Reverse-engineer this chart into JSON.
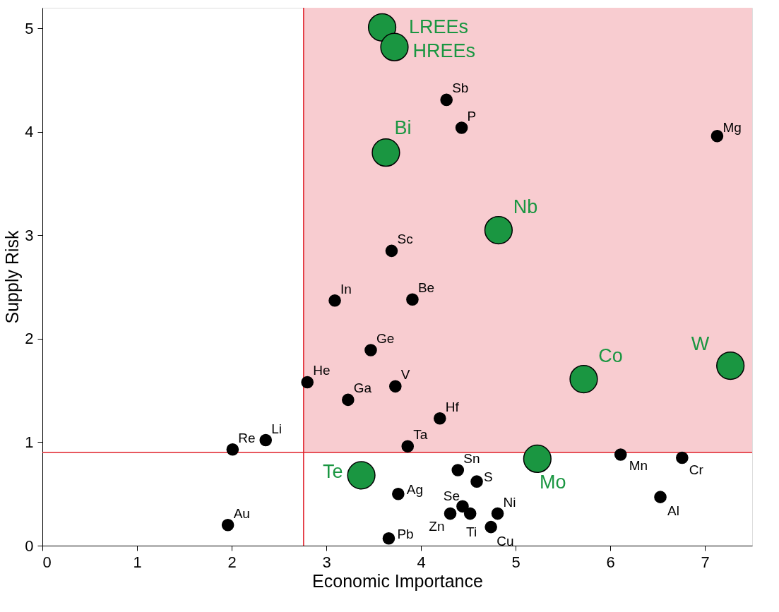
{
  "chart_data": {
    "type": "scatter",
    "xlabel": "Economic Importance",
    "ylabel": "Supply Risk",
    "xlim": [
      0,
      7.5
    ],
    "ylim": [
      0,
      5.2
    ],
    "xticks": [
      0,
      1,
      2,
      3,
      4,
      5,
      6,
      7
    ],
    "yticks": [
      0,
      1,
      2,
      3,
      4,
      5
    ],
    "grid": false,
    "marker": "circle",
    "series": [
      {
        "color": "#000000",
        "x": [
          4.27,
          4.43,
          7.13,
          3.69,
          3.09,
          3.91,
          3.47,
          2.8,
          3.73,
          3.23,
          4.2,
          3.86,
          2.01,
          2.36,
          6.11,
          6.76,
          4.39,
          4.59,
          3.76,
          6.53,
          4.44,
          4.31,
          4.52,
          4.81,
          1.96,
          4.74,
          3.66
        ],
        "values": [
          4.31,
          4.04,
          3.96,
          2.85,
          2.37,
          2.38,
          1.89,
          1.58,
          1.54,
          1.41,
          1.23,
          0.96,
          0.93,
          1.02,
          0.88,
          0.85,
          0.73,
          0.62,
          0.5,
          0.47,
          0.38,
          0.31,
          0.31,
          0.31,
          0.2,
          0.18,
          0.07
        ]
      },
      {
        "color": "#1a9641",
        "x": [
          3.59,
          3.72,
          3.63,
          4.82,
          5.72,
          7.27,
          5.23,
          3.37
        ],
        "values": [
          5.01,
          4.82,
          3.8,
          3.05,
          1.61,
          1.74,
          0.84,
          0.68
        ]
      }
    ],
    "ref_lines": [
      {
        "axis": "x",
        "value": 2.76,
        "color": "#e0202a"
      },
      {
        "axis": "y",
        "value": 0.9,
        "color": "#e0202a"
      }
    ],
    "bands": [
      {
        "axis": "y",
        "from": 0.9,
        "to": 5.2,
        "color": "#f8ccd0"
      }
    ],
    "annotations": [
      {
        "text": "Sb",
        "x": 4.27,
        "y": 4.31
      },
      {
        "text": "P",
        "x": 4.43,
        "y": 4.04
      },
      {
        "text": "Mg",
        "x": 7.13,
        "y": 3.96
      },
      {
        "text": "Sc",
        "x": 3.69,
        "y": 2.85
      },
      {
        "text": "In",
        "x": 3.09,
        "y": 2.37
      },
      {
        "text": "Be",
        "x": 3.91,
        "y": 2.38
      },
      {
        "text": "Ge",
        "x": 3.47,
        "y": 1.89
      },
      {
        "text": "He",
        "x": 2.8,
        "y": 1.58
      },
      {
        "text": "V",
        "x": 3.73,
        "y": 1.54
      },
      {
        "text": "Ga",
        "x": 3.23,
        "y": 1.41
      },
      {
        "text": "Hf",
        "x": 4.2,
        "y": 1.23
      },
      {
        "text": "Ta",
        "x": 3.86,
        "y": 0.96
      },
      {
        "text": "Re",
        "x": 2.01,
        "y": 0.93
      },
      {
        "text": "Li",
        "x": 2.36,
        "y": 1.02
      },
      {
        "text": "Mn",
        "x": 6.11,
        "y": 0.88
      },
      {
        "text": "Cr",
        "x": 6.76,
        "y": 0.85
      },
      {
        "text": "Sn",
        "x": 4.39,
        "y": 0.73
      },
      {
        "text": "S",
        "x": 4.59,
        "y": 0.62
      },
      {
        "text": "Ag",
        "x": 3.76,
        "y": 0.5
      },
      {
        "text": "Al",
        "x": 6.53,
        "y": 0.47
      },
      {
        "text": "Se",
        "x": 4.44,
        "y": 0.38
      },
      {
        "text": "Zn",
        "x": 4.31,
        "y": 0.31
      },
      {
        "text": "Ti",
        "x": 4.52,
        "y": 0.31
      },
      {
        "text": "Ni",
        "x": 4.81,
        "y": 0.31
      },
      {
        "text": "Au",
        "x": 1.96,
        "y": 0.2
      },
      {
        "text": "Cu",
        "x": 4.74,
        "y": 0.18
      },
      {
        "text": "Pb",
        "x": 3.66,
        "y": 0.07
      },
      {
        "text": "LREEs",
        "x": 3.59,
        "y": 5.01
      },
      {
        "text": "HREEs",
        "x": 3.72,
        "y": 4.82
      },
      {
        "text": "Bi",
        "x": 3.63,
        "y": 3.8
      },
      {
        "text": "Nb",
        "x": 4.82,
        "y": 3.05
      },
      {
        "text": "Co",
        "x": 5.72,
        "y": 1.61
      },
      {
        "text": "W",
        "x": 7.27,
        "y": 1.74
      },
      {
        "text": "Mo",
        "x": 5.23,
        "y": 0.84
      },
      {
        "text": "Te",
        "x": 3.37,
        "y": 0.68
      }
    ]
  }
}
